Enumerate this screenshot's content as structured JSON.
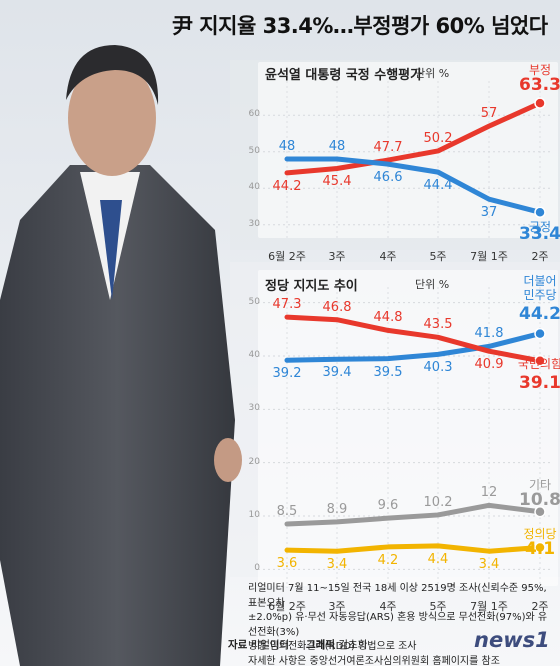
{
  "title": "尹 지지율 33.4%…부정평가 60% 넘었다",
  "credits": {
    "source_label": "자료",
    "source": "리얼미터",
    "graphic_label": "그래픽",
    "graphic": "김초희"
  },
  "logo_text": "news1",
  "note_lines": [
    "리얼미터 7월 11~15일 전국 18세 이상 2519명 조사(신뢰수준 95%, 표본오차",
    "±2.0%p) 유·무선 자동응답(ARS) 혼용 방식으로 무선전화(97%)와 유선전화(3%)",
    "병행 임의전화걸기(RDD) 방법으로 조사",
    "자세한 사항은 중앙선거여론조사심의위원회 홈페이지를 참조"
  ],
  "colors": {
    "red": "#e8382c",
    "blue": "#2f86d6",
    "gray": "#9a9a9a",
    "yellow": "#f2b400"
  },
  "chart_data": [
    {
      "type": "line",
      "title": "윤석열 대통령 국정 수행평가",
      "unit": "단위 %",
      "categories": [
        "6월 2주",
        "3주",
        "4주",
        "5주",
        "7월 1주",
        "2주"
      ],
      "y_ticks": [
        30,
        40,
        50,
        60
      ],
      "ylim": [
        28,
        68
      ],
      "series": [
        {
          "name": "부정",
          "color": "#e8382c",
          "values": [
            44.2,
            45.4,
            47.7,
            50.2,
            57,
            63.3
          ]
        },
        {
          "name": "긍정",
          "color": "#2f86d6",
          "values": [
            48,
            48,
            46.6,
            44.4,
            37,
            33.4
          ]
        }
      ]
    },
    {
      "type": "line",
      "title": "정당 지지도 추이",
      "unit": "단위 %",
      "categories": [
        "6월 2주",
        "3주",
        "4주",
        "5주",
        "7월 1주",
        "2주"
      ],
      "y_ticks": [
        0,
        10,
        20,
        30,
        40,
        50
      ],
      "ylim": [
        -2,
        52
      ],
      "series": [
        {
          "name": "더불어민주당",
          "name_lines": [
            "더불어",
            "민주당"
          ],
          "color": "#2f86d6",
          "values": [
            39.2,
            39.4,
            39.5,
            40.3,
            41.8,
            44.2
          ]
        },
        {
          "name": "국민의힘",
          "color": "#e8382c",
          "values": [
            47.3,
            46.8,
            44.8,
            43.5,
            40.9,
            39.1
          ]
        },
        {
          "name": "기타",
          "color": "#9a9a9a",
          "values": [
            8.5,
            8.9,
            9.6,
            10.2,
            12,
            10.8
          ]
        },
        {
          "name": "정의당",
          "color": "#f2b400",
          "values": [
            3.6,
            3.4,
            4.2,
            4.4,
            3.4,
            4.1
          ]
        }
      ]
    }
  ]
}
